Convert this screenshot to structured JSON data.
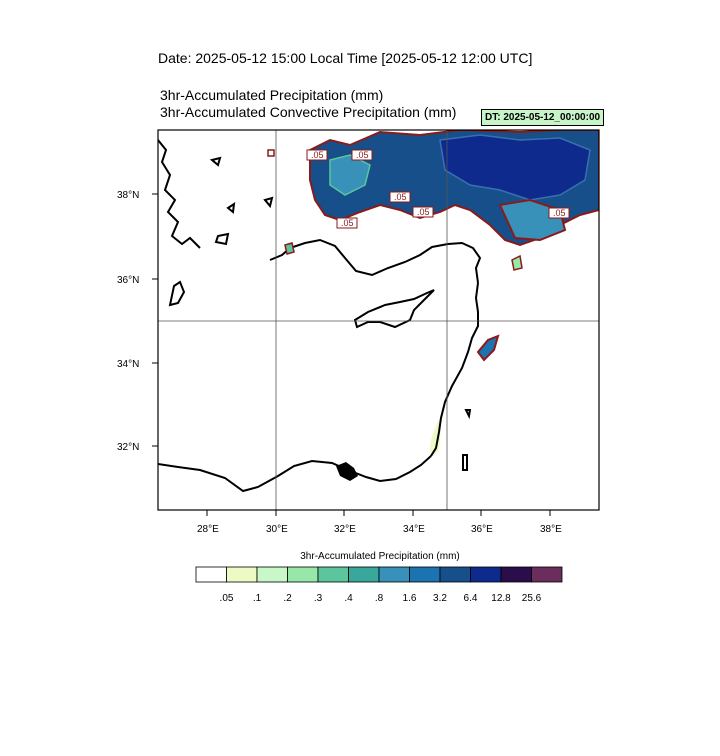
{
  "title": {
    "date_line": "Date: 2025-05-12  15:00 Local Time [2025-05-12  12:00 UTC]",
    "subtitle_1": "3hr-Accumulated Precipitation   (mm)",
    "subtitle_2": "3hr-Accumulated Convective Precipitation   (mm)",
    "dt_badge": "DT: 2025-05-12_00:00:00"
  },
  "map": {
    "region": "Eastern Mediterranean",
    "lon_range": [
      26.6,
      39.4
    ],
    "lat_range": [
      30.4,
      39.5
    ],
    "gridlines_lon": [
      30,
      35
    ],
    "gridlines_lat": [
      35
    ],
    "lon_ticks": [
      "28°E",
      "30°E",
      "32°E",
      "34°E",
      "36°E",
      "38°E"
    ],
    "lat_ticks": [
      "38°N",
      "36°N",
      "34°N",
      "32°N"
    ],
    "convective_contour_labels": [
      ".05",
      ".05",
      ".05",
      ".05",
      ".05",
      ".05"
    ]
  },
  "colorbar": {
    "title": "3hr-Accumulated Precipitation  (mm)",
    "colors": [
      "#ffffff",
      "#eefac4",
      "#c8f7c8",
      "#97e8a8",
      "#5cc59e",
      "#3aa79c",
      "#3791b8",
      "#1c73b2",
      "#174f8a",
      "#0e2a8c",
      "#2a0d4a",
      "#6b2d5c"
    ],
    "labels": [
      ".05",
      ".1",
      ".2",
      ".3",
      ".4",
      ".8",
      "1.6",
      "3.2",
      "6.4",
      "12.8",
      "25.6"
    ]
  }
}
